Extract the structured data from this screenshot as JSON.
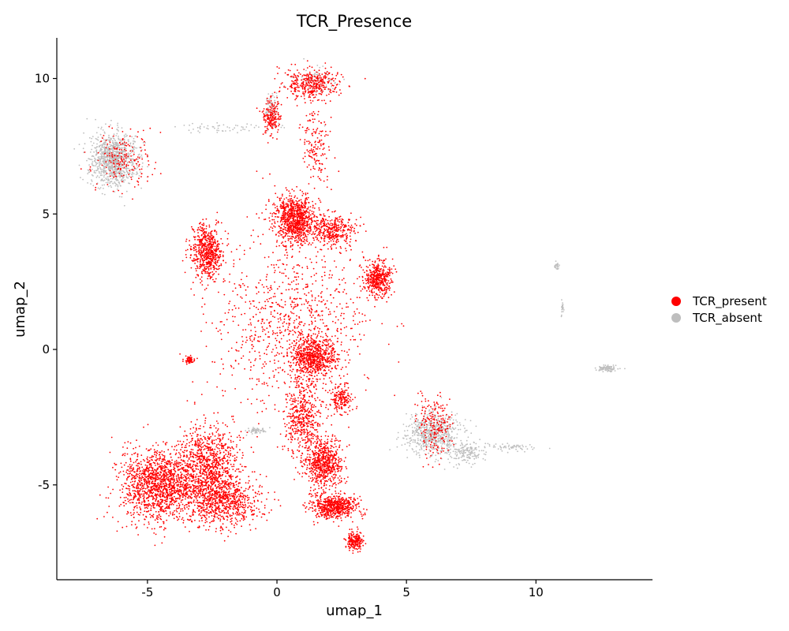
{
  "chart_data": {
    "type": "scatter",
    "title": "TCR_Presence",
    "xlabel": "umap_1",
    "ylabel": "umap_2",
    "xlim": [
      -8.5,
      14.5
    ],
    "ylim": [
      -8.5,
      11.5
    ],
    "xticks": [
      -5,
      0,
      5,
      10
    ],
    "xtick_labels": [
      "-5",
      "0",
      "5",
      "10"
    ],
    "yticks": [
      -5,
      0,
      5,
      10
    ],
    "ytick_labels": [
      "-5",
      "0",
      "5",
      "10"
    ],
    "grid": false,
    "legend_position": "right",
    "series": [
      {
        "name": "TCR_present",
        "color": "#ff0000",
        "clusters": [
          {
            "center": [
              -4.5,
              -5.0
            ],
            "spread": [
              1.4,
              1.2
            ],
            "n": 1500
          },
          {
            "center": [
              -2.6,
              -4.3
            ],
            "spread": [
              1.0,
              1.4
            ],
            "n": 900
          },
          {
            "center": [
              -2.0,
              -5.6
            ],
            "spread": [
              1.3,
              0.9
            ],
            "n": 700
          },
          {
            "center": [
              -2.7,
              3.6
            ],
            "spread": [
              0.55,
              0.9
            ],
            "n": 600
          },
          {
            "center": [
              0.7,
              4.8
            ],
            "spread": [
              0.7,
              0.8
            ],
            "n": 900
          },
          {
            "center": [
              2.2,
              4.4
            ],
            "spread": [
              0.8,
              0.5
            ],
            "n": 350
          },
          {
            "center": [
              3.9,
              2.6
            ],
            "spread": [
              0.45,
              0.6
            ],
            "n": 450
          },
          {
            "center": [
              1.4,
              9.8
            ],
            "spread": [
              1.0,
              0.5
            ],
            "n": 380
          },
          {
            "center": [
              -0.2,
              8.6
            ],
            "spread": [
              0.3,
              0.6
            ],
            "n": 180
          },
          {
            "center": [
              1.5,
              7.5
            ],
            "spread": [
              0.5,
              1.3
            ],
            "n": 160
          },
          {
            "center": [
              1.4,
              -0.3
            ],
            "spread": [
              0.8,
              0.7
            ],
            "n": 700
          },
          {
            "center": [
              1.0,
              -2.5
            ],
            "spread": [
              0.6,
              1.2
            ],
            "n": 450
          },
          {
            "center": [
              2.5,
              -1.8
            ],
            "spread": [
              0.35,
              0.5
            ],
            "n": 180
          },
          {
            "center": [
              1.8,
              -4.2
            ],
            "spread": [
              0.7,
              0.8
            ],
            "n": 650
          },
          {
            "center": [
              2.2,
              -5.8
            ],
            "spread": [
              0.8,
              0.4
            ],
            "n": 600
          },
          {
            "center": [
              3.0,
              -7.1
            ],
            "spread": [
              0.3,
              0.3
            ],
            "n": 200
          },
          {
            "center": [
              -3.4,
              -0.4
            ],
            "spread": [
              0.15,
              0.12
            ],
            "n": 60
          },
          {
            "center": [
              -6.0,
              7.0
            ],
            "spread": [
              1.0,
              1.0
            ],
            "n": 180
          },
          {
            "center": [
              6.1,
              -2.8
            ],
            "spread": [
              0.6,
              1.0
            ],
            "n": 200
          },
          {
            "center": [
              0.5,
              1.0
            ],
            "spread": [
              2.8,
              3.0
            ],
            "n": 900
          }
        ]
      },
      {
        "name": "TCR_absent",
        "color": "#bebebe",
        "clusters": [
          {
            "center": [
              -6.3,
              7.0
            ],
            "spread": [
              0.8,
              0.85
            ],
            "n": 1000
          },
          {
            "center": [
              6.0,
              -3.1
            ],
            "spread": [
              0.9,
              0.7
            ],
            "n": 650
          },
          {
            "center": [
              7.3,
              -3.8
            ],
            "spread": [
              0.6,
              0.4
            ],
            "n": 150
          },
          {
            "center": [
              12.8,
              -0.7
            ],
            "spread": [
              0.4,
              0.1
            ],
            "n": 90
          },
          {
            "center": [
              10.8,
              3.1
            ],
            "spread": [
              0.07,
              0.12
            ],
            "n": 25
          },
          {
            "center": [
              11.0,
              1.5
            ],
            "spread": [
              0.06,
              0.25
            ],
            "n": 20
          },
          {
            "center": [
              9.0,
              -3.6
            ],
            "spread": [
              0.9,
              0.15
            ],
            "n": 60
          },
          {
            "center": [
              -0.8,
              -3.0
            ],
            "spread": [
              0.3,
              0.1
            ],
            "n": 60
          },
          {
            "center": [
              -2.0,
              8.2
            ],
            "spread": [
              2.0,
              0.2
            ],
            "n": 60
          },
          {
            "center": [
              -0.2,
              9.0
            ],
            "spread": [
              0.2,
              0.5
            ],
            "n": 70
          },
          {
            "center": [
              1.5,
              10.0
            ],
            "spread": [
              0.8,
              0.4
            ],
            "n": 80
          }
        ]
      }
    ]
  }
}
